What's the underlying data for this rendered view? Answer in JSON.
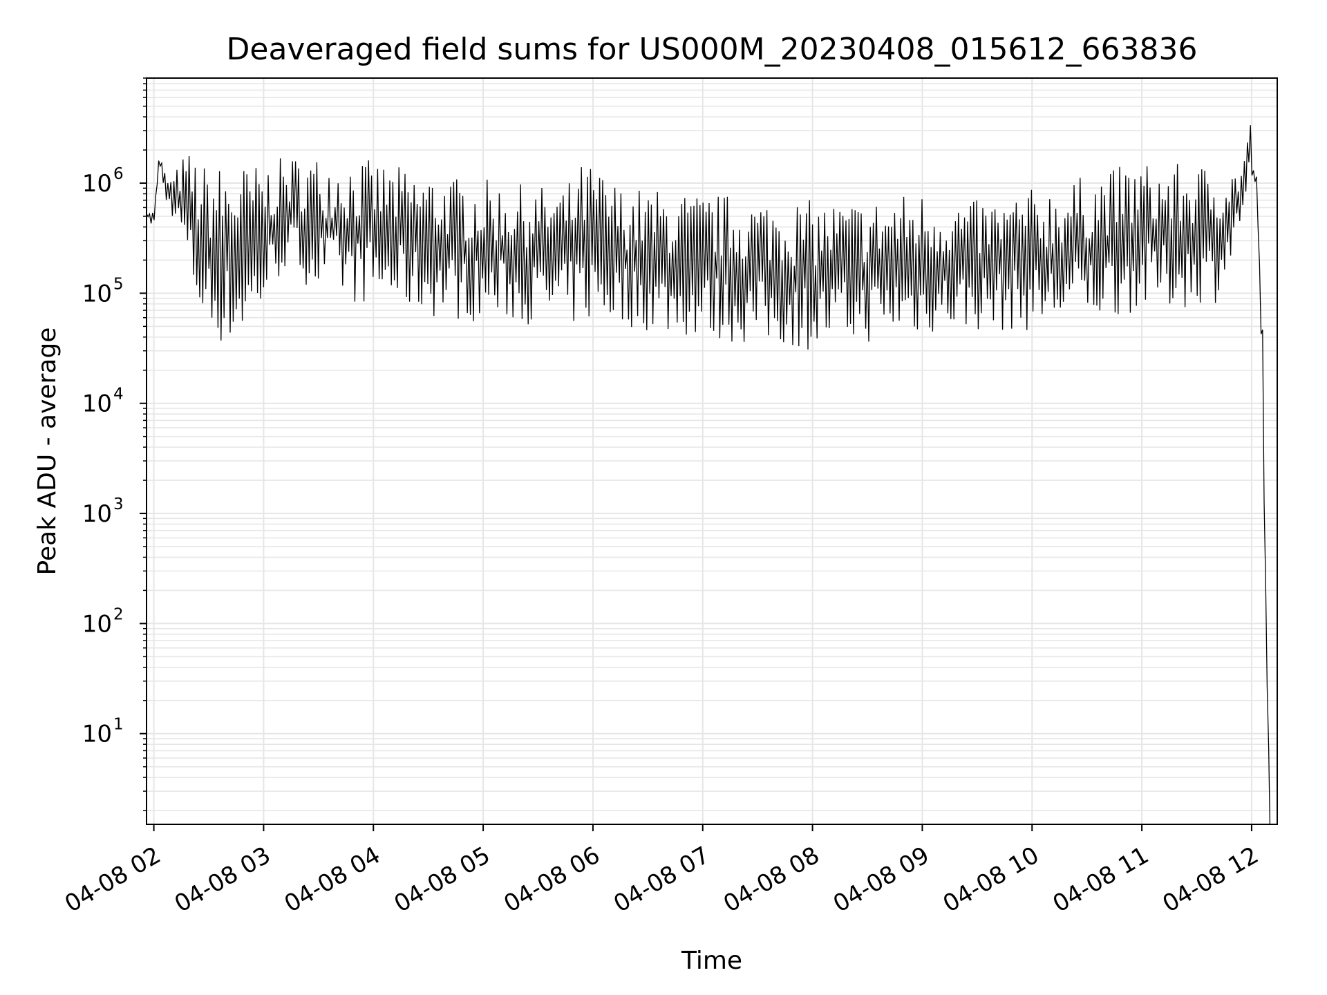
{
  "chart_data": {
    "type": "line",
    "title": "Deaveraged field sums for US000M_20230408_015612_663836",
    "xlabel": "Time",
    "ylabel": "Peak ADU - average",
    "y_scale": "log",
    "ylim": [
      1.5,
      9000000
    ],
    "xlim": [
      "2023-04-08T01:56",
      "2023-04-08T12:14"
    ],
    "grid": "on",
    "legend": "none",
    "x_tick_labels": [
      "04-08 02",
      "04-08 03",
      "04-08 04",
      "04-08 05",
      "04-08 06",
      "04-08 07",
      "04-08 08",
      "04-08 09",
      "04-08 10",
      "04-08 11",
      "04-08 12"
    ],
    "x_tick_values": [
      "2023-04-08T02:00",
      "2023-04-08T03:00",
      "2023-04-08T04:00",
      "2023-04-08T05:00",
      "2023-04-08T06:00",
      "2023-04-08T07:00",
      "2023-04-08T08:00",
      "2023-04-08T09:00",
      "2023-04-08T10:00",
      "2023-04-08T11:00",
      "2023-04-08T12:00"
    ],
    "y_tick_labels": [
      {
        "base": "10",
        "exp": "1",
        "value": 10
      },
      {
        "base": "10",
        "exp": "2",
        "value": 100
      },
      {
        "base": "10",
        "exp": "3",
        "value": 1000
      },
      {
        "base": "10",
        "exp": "4",
        "value": 10000
      },
      {
        "base": "10",
        "exp": "5",
        "value": 100000
      },
      {
        "base": "10",
        "exp": "6",
        "value": 1000000
      }
    ],
    "line_color": "#000000",
    "grid_color": "#e6e6e6",
    "series": [
      {
        "x": [
          "2023-04-08T01:56",
          "2023-04-08T02:00",
          "2023-04-08T02:03",
          "2023-04-08T02:06",
          "2023-04-08T02:10",
          "2023-04-08T02:15",
          "2023-04-08T02:20",
          "2023-04-08T02:25",
          "2023-04-08T02:30",
          "2023-04-08T02:35",
          "2023-04-08T02:40",
          "2023-04-08T02:45",
          "2023-04-08T02:50",
          "2023-04-08T02:55",
          "2023-04-08T03:00",
          "2023-04-08T03:05",
          "2023-04-08T03:10",
          "2023-04-08T03:15",
          "2023-04-08T03:20",
          "2023-04-08T03:30",
          "2023-04-08T03:40",
          "2023-04-08T03:50",
          "2023-04-08T04:00",
          "2023-04-08T04:10",
          "2023-04-08T04:20",
          "2023-04-08T04:30",
          "2023-04-08T04:40",
          "2023-04-08T04:50",
          "2023-04-08T05:00",
          "2023-04-08T05:15",
          "2023-04-08T05:30",
          "2023-04-08T05:45",
          "2023-04-08T05:55",
          "2023-04-08T06:00",
          "2023-04-08T06:15",
          "2023-04-08T06:30",
          "2023-04-08T06:45",
          "2023-04-08T07:00",
          "2023-04-08T07:15",
          "2023-04-08T07:30",
          "2023-04-08T07:45",
          "2023-04-08T08:00",
          "2023-04-08T08:15",
          "2023-04-08T08:30",
          "2023-04-08T08:45",
          "2023-04-08T09:00",
          "2023-04-08T09:15",
          "2023-04-08T09:30",
          "2023-04-08T09:45",
          "2023-04-08T10:00",
          "2023-04-08T10:15",
          "2023-04-08T10:30",
          "2023-04-08T10:45",
          "2023-04-08T11:00",
          "2023-04-08T11:10",
          "2023-04-08T11:20",
          "2023-04-08T11:30",
          "2023-04-08T11:40",
          "2023-04-08T11:50",
          "2023-04-08T11:55",
          "2023-04-08T11:59",
          "2023-04-08T12:01",
          "2023-04-08T12:03",
          "2023-04-08T12:06",
          "2023-04-08T12:08",
          "2023-04-08T12:10"
        ],
        "upper": [
          600000,
          550000,
          1900000,
          1300000,
          1100000,
          1700000,
          2000000,
          1500000,
          1500000,
          1500000,
          1500000,
          1500000,
          1500000,
          1500000,
          1500000,
          1600000,
          1700000,
          1800000,
          1800000,
          1800000,
          1800000,
          1700000,
          1600000,
          1500000,
          1300000,
          1300000,
          1200000,
          1100000,
          1100000,
          1000000,
          950000,
          950000,
          1600000,
          1500000,
          950000,
          900000,
          850000,
          800000,
          800000,
          750000,
          750000,
          700000,
          700000,
          700000,
          800000,
          850000,
          750000,
          700000,
          750000,
          900000,
          1000000,
          1200000,
          1400000,
          1600000,
          1500000,
          1500000,
          1500000,
          1500000,
          1400000,
          1500000,
          4500000,
          1400000,
          1200000,
          50000,
          100,
          2
        ],
        "lower": [
          450000,
          400000,
          1500000,
          700000,
          500000,
          300000,
          120000,
          60000,
          40000,
          35000,
          32000,
          35000,
          40000,
          50000,
          70000,
          100000,
          150000,
          150000,
          130000,
          100000,
          90000,
          80000,
          80000,
          75000,
          70000,
          60000,
          60000,
          55000,
          55000,
          55000,
          50000,
          50000,
          50000,
          55000,
          50000,
          45000,
          40000,
          38000,
          35000,
          33000,
          32000,
          30000,
          33000,
          35000,
          40000,
          40000,
          45000,
          45000,
          45000,
          45000,
          50000,
          55000,
          60000,
          70000,
          70000,
          70000,
          80000,
          80000,
          200000,
          500000,
          900000,
          1100000,
          600000,
          5000,
          50,
          2
        ]
      }
    ]
  }
}
